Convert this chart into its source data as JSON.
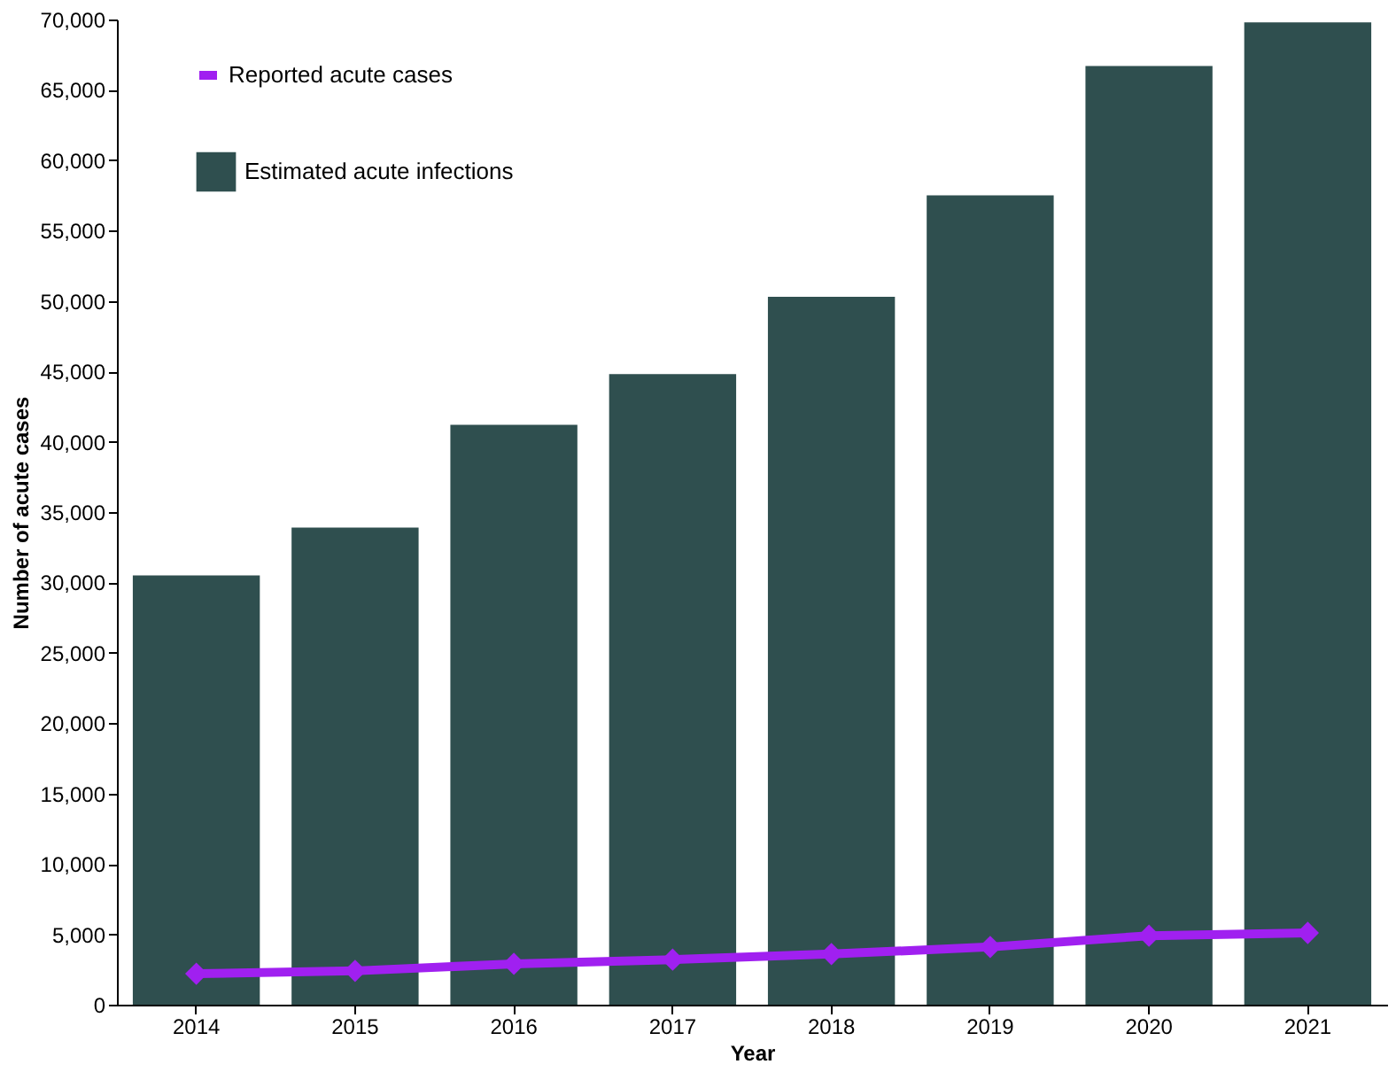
{
  "chart_data": {
    "type": "bar",
    "xlabel": "Year",
    "ylabel": "Number of acute cases",
    "categories": [
      "2014",
      "2015",
      "2016",
      "2017",
      "2018",
      "2019",
      "2020",
      "2021"
    ],
    "series": [
      {
        "name": "Estimated acute infections",
        "color": "#2f4f4f",
        "values": [
          30500,
          33900,
          41200,
          44800,
          50300,
          57500,
          66700,
          69800
        ]
      },
      {
        "name": "Reported acute cases",
        "type": "line",
        "color": "#a020f0",
        "marker": "diamond",
        "line_style": "solid",
        "values": [
          2200,
          2400,
          2900,
          3200,
          3600,
          4100,
          4900,
          5100
        ]
      }
    ],
    "ylim": [
      0,
      70000
    ],
    "yticks": [
      0,
      {
        "value": 5000,
        "label": "5,000"
      },
      {
        "value": 10000,
        "label": "10,000"
      },
      {
        "value": 15000,
        "label": "15,000"
      },
      {
        "value": 20000,
        "label": "20,000"
      },
      {
        "value": 25000,
        "label": "25,000"
      },
      {
        "value": 30000,
        "label": "30,000"
      },
      {
        "value": 35000,
        "label": "35,000"
      },
      {
        "value": 40000,
        "label": "40,000"
      },
      {
        "value": 45000,
        "label": "45,000"
      },
      {
        "value": 50000,
        "label": "50,000"
      },
      {
        "value": 55000,
        "label": "55,000"
      },
      {
        "value": 60000,
        "label": "60,000"
      },
      {
        "value": 65000,
        "label": "65,000"
      },
      {
        "value": 70000,
        "label": "70,000"
      }
    ],
    "grid": false,
    "legend": "top left"
  }
}
